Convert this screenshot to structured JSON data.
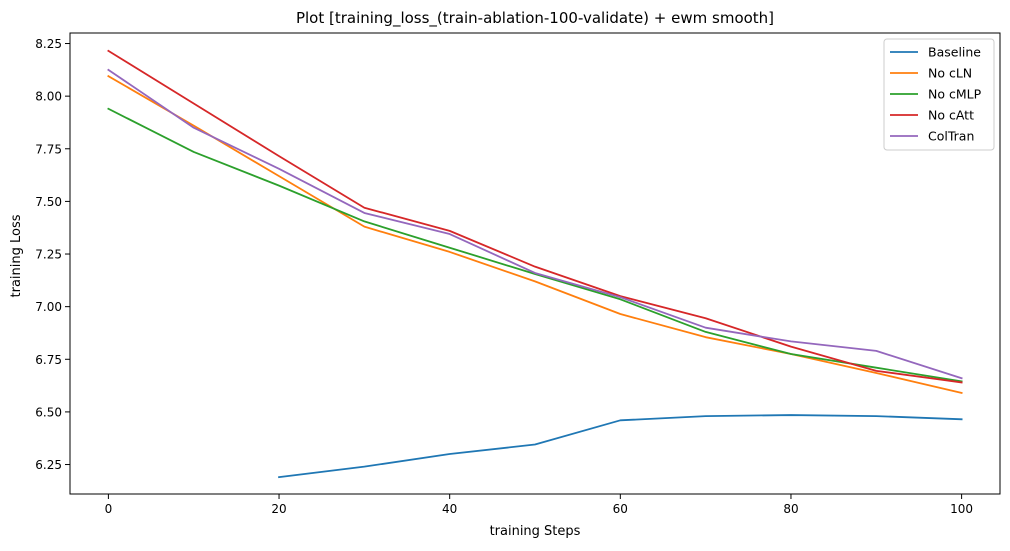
{
  "chart_data": {
    "type": "line",
    "title": "Plot [training_loss_(train-ablation-100-validate) + ewm smooth]",
    "xlabel": "training Steps",
    "ylabel": "training Loss",
    "xlim": [
      -4.5,
      104.5
    ],
    "ylim": [
      6.11,
      8.3
    ],
    "xticks": [
      0,
      20,
      40,
      60,
      80,
      100
    ],
    "yticks": [
      6.25,
      6.5,
      6.75,
      7.0,
      7.25,
      7.5,
      7.75,
      8.0,
      8.25
    ],
    "xtick_labels": [
      "0",
      "20",
      "40",
      "60",
      "80",
      "100"
    ],
    "ytick_labels": [
      "6.25",
      "6.50",
      "6.75",
      "7.00",
      "7.25",
      "7.50",
      "7.75",
      "8.00",
      "8.25"
    ],
    "grid": false,
    "legend_position": "top-right",
    "series": [
      {
        "name": "Baseline",
        "color": "#1f77b4",
        "x": [
          20,
          30,
          40,
          50,
          60,
          70,
          80,
          90,
          100
        ],
        "y": [
          6.19,
          6.24,
          6.3,
          6.345,
          6.46,
          6.48,
          6.485,
          6.48,
          6.465
        ]
      },
      {
        "name": "No cLN",
        "color": "#ff7f0e",
        "x": [
          0,
          10,
          20,
          30,
          40,
          50,
          60,
          70,
          80,
          90,
          100
        ],
        "y": [
          8.095,
          7.86,
          7.62,
          7.38,
          7.26,
          7.12,
          6.965,
          6.855,
          6.775,
          6.685,
          6.59
        ]
      },
      {
        "name": "No cMLP",
        "color": "#2ca02c",
        "x": [
          0,
          10,
          20,
          30,
          40,
          50,
          60,
          70,
          80,
          90,
          100
        ],
        "y": [
          7.94,
          7.735,
          7.575,
          7.405,
          7.28,
          7.155,
          7.035,
          6.88,
          6.775,
          6.71,
          6.645
        ]
      },
      {
        "name": "No cAtt",
        "color": "#d62728",
        "x": [
          0,
          10,
          20,
          30,
          40,
          50,
          60,
          70,
          80,
          90,
          100
        ],
        "y": [
          8.215,
          7.965,
          7.715,
          7.47,
          7.36,
          7.19,
          7.05,
          6.945,
          6.81,
          6.695,
          6.64
        ]
      },
      {
        "name": "ColTran",
        "color": "#9467bd",
        "x": [
          0,
          10,
          20,
          30,
          40,
          50,
          60,
          70,
          80,
          90,
          100
        ],
        "y": [
          8.125,
          7.85,
          7.655,
          7.445,
          7.345,
          7.16,
          7.045,
          6.9,
          6.835,
          6.79,
          6.66
        ]
      }
    ]
  }
}
